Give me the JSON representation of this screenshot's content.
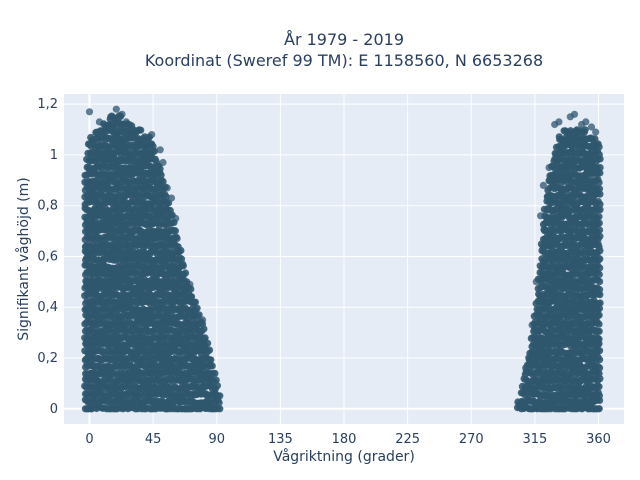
{
  "chart_data": {
    "type": "scatter",
    "title": "År 1979 - 2019",
    "subtitle": "Koordinat (Sweref 99 TM): E 1158560, N 6653268",
    "xlabel": "Vågriktning (grader)",
    "ylabel": "Signifikant våghöjd (m)",
    "xlim": [
      -18,
      378
    ],
    "ylim": [
      -0.06,
      1.24
    ],
    "x_ticks": [
      0,
      45,
      90,
      135,
      180,
      225,
      270,
      315,
      360
    ],
    "x_tick_labels": [
      "0",
      "45",
      "90",
      "135",
      "180",
      "225",
      "270",
      "315",
      "360"
    ],
    "y_ticks": [
      0,
      0.2,
      0.4,
      0.6,
      0.8,
      1.0,
      1.2
    ],
    "y_tick_labels": [
      "0",
      "0,2",
      "0,4",
      "0,6",
      "0,8",
      "1",
      "1,2"
    ],
    "grid": true,
    "colors": {
      "plot_bg": "#e5ecf6",
      "marker": "#2f566d"
    },
    "clusters": [
      {
        "x_range": [
          -3,
          93
        ],
        "upper_envelope": [
          [
            -3,
            0.95
          ],
          [
            0,
            1.08
          ],
          [
            5,
            1.1
          ],
          [
            10,
            1.12
          ],
          [
            15,
            1.15
          ],
          [
            20,
            1.16
          ],
          [
            25,
            1.14
          ],
          [
            30,
            1.12
          ],
          [
            35,
            1.1
          ],
          [
            40,
            1.08
          ],
          [
            45,
            1.05
          ],
          [
            50,
            0.95
          ],
          [
            55,
            0.85
          ],
          [
            60,
            0.72
          ],
          [
            65,
            0.6
          ],
          [
            70,
            0.5
          ],
          [
            75,
            0.42
          ],
          [
            80,
            0.34
          ],
          [
            85,
            0.22
          ],
          [
            90,
            0.1
          ],
          [
            93,
            0.03
          ]
        ]
      },
      {
        "x_range": [
          303,
          361
        ],
        "upper_envelope": [
          [
            303,
            0.03
          ],
          [
            305,
            0.07
          ],
          [
            310,
            0.2
          ],
          [
            315,
            0.38
          ],
          [
            318,
            0.55
          ],
          [
            322,
            0.8
          ],
          [
            326,
            0.95
          ],
          [
            330,
            1.05
          ],
          [
            335,
            1.1
          ],
          [
            340,
            1.12
          ],
          [
            345,
            1.12
          ],
          [
            350,
            1.1
          ],
          [
            355,
            1.08
          ],
          [
            358,
            1.06
          ],
          [
            361,
            1.04
          ]
        ]
      }
    ],
    "outliers": [
      [
        0,
        1.17
      ],
      [
        7,
        1.13
      ],
      [
        15,
        1.15
      ],
      [
        19,
        1.18
      ],
      [
        23,
        1.16
      ],
      [
        26,
        1.13
      ],
      [
        44,
        1.08
      ],
      [
        50,
        1.02
      ],
      [
        52,
        0.97
      ],
      [
        55,
        0.87
      ],
      [
        58,
        0.83
      ],
      [
        61,
        0.75
      ],
      [
        62,
        0.67
      ],
      [
        63,
        0.62
      ],
      [
        66,
        0.57
      ],
      [
        71,
        0.49
      ],
      [
        75,
        0.42
      ],
      [
        80,
        0.35
      ],
      [
        329,
        1.12
      ],
      [
        332,
        1.13
      ],
      [
        340,
        1.15
      ],
      [
        343,
        1.16
      ],
      [
        348,
        1.12
      ],
      [
        351,
        1.13
      ],
      [
        355,
        1.11
      ],
      [
        358,
        1.09
      ],
      [
        325,
        0.95
      ],
      [
        321,
        0.88
      ],
      [
        319,
        0.76
      ],
      [
        316,
        0.5
      ],
      [
        313,
        0.33
      ]
    ]
  }
}
